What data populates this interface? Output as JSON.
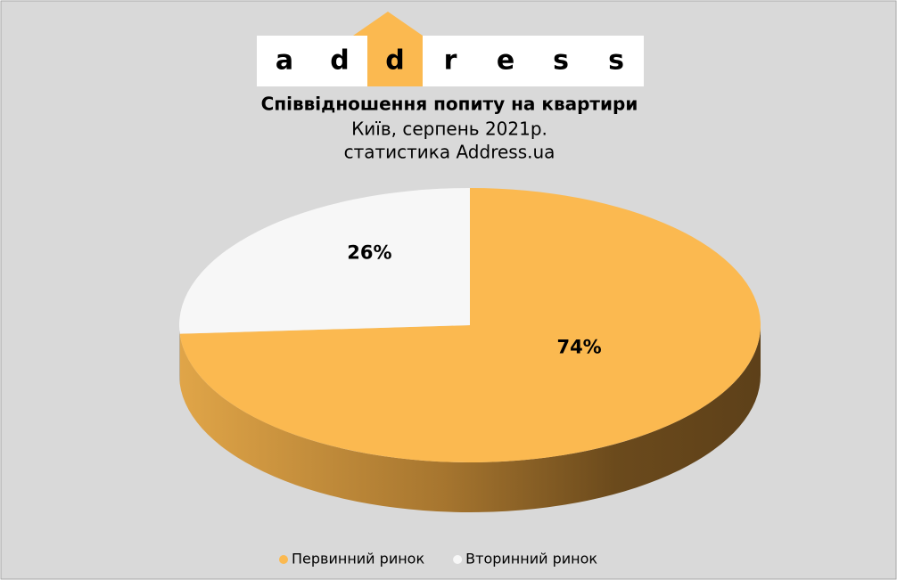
{
  "logo": [
    "a",
    "d",
    "d",
    "r",
    "e",
    "s",
    "s"
  ],
  "chart_data": {
    "type": "pie",
    "title": "Співвідношення попиту на квартири",
    "subtitle": [
      "Київ, серпень 2021р.",
      "статистика Address.ua"
    ],
    "categories": [
      "Первинний ринок",
      "Вторинний ринок"
    ],
    "values": [
      74,
      26
    ],
    "value_labels": [
      "74%",
      "26%"
    ],
    "colors": [
      "#fbb950",
      "#f7f7f7"
    ],
    "legend": "bottom"
  }
}
